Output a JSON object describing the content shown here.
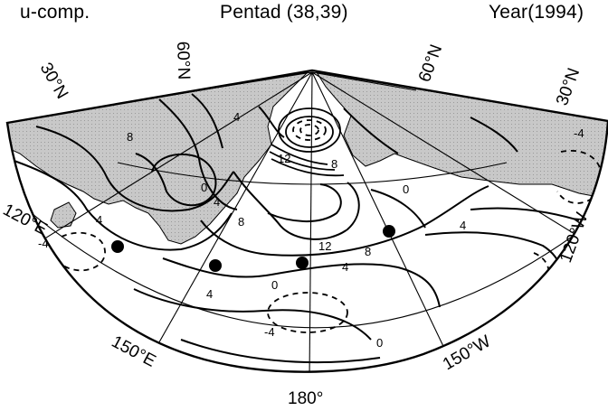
{
  "header": {
    "variable": "u-comp.",
    "period": "Pentad (38,39)",
    "year": "Year(1994)"
  },
  "map": {
    "projection": "polar-stereographic",
    "colors": {
      "land": "#c8c8c8",
      "line": "#000000",
      "background": "#ffffff"
    },
    "latitude_labels": [
      "30°N",
      "60°N",
      "60°N",
      "30°N"
    ],
    "longitude_labels": [
      "120°E",
      "150°E",
      "180°",
      "150°W",
      "120°W"
    ],
    "contour_labels": [
      "8",
      "12",
      "8",
      "4",
      "8",
      "4",
      "0",
      "4",
      "12",
      "8",
      "4",
      "0",
      "4",
      "-4",
      "-4",
      "4",
      "0",
      "0",
      "-4"
    ],
    "stations": 4
  }
}
